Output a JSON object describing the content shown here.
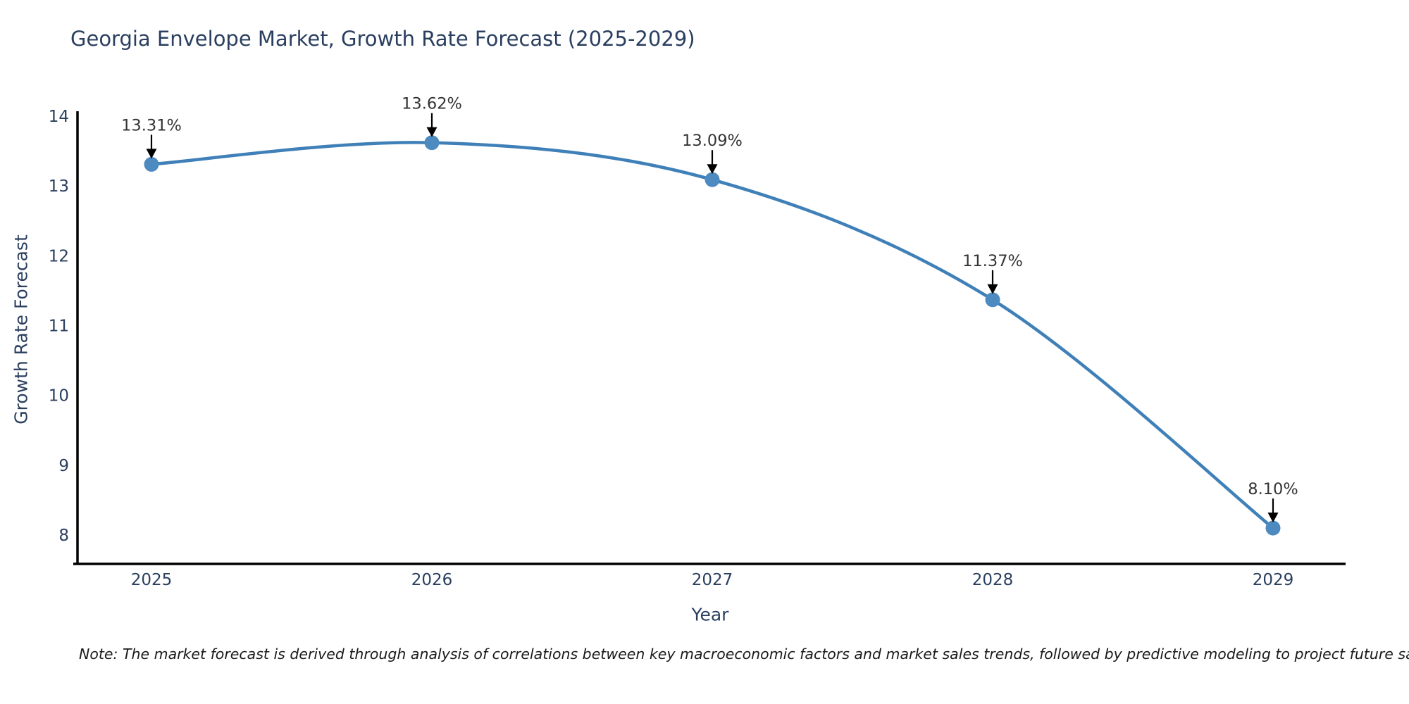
{
  "title": "Georgia Envelope Market, Growth Rate Forecast (2025-2029)",
  "note": "Note: The market forecast is derived through analysis of correlations between key macroeconomic factors and market sales trends, followed by predictive modeling to project future sales",
  "chart_data": {
    "type": "line",
    "title": "Georgia Envelope Market, Growth Rate Forecast (2025-2029)",
    "xlabel": "Year",
    "ylabel": "Growth Rate Forecast",
    "x": [
      2025,
      2026,
      2027,
      2028,
      2029
    ],
    "values": [
      13.31,
      13.62,
      13.09,
      11.37,
      8.1
    ],
    "point_labels": [
      "13.31%",
      "13.62%",
      "13.09%",
      "11.37%",
      "8.10%"
    ],
    "yticks": [
      8,
      9,
      10,
      11,
      12,
      13,
      14
    ],
    "ylim": [
      7.6,
      14.07
    ],
    "grid": false,
    "legend_position": "none",
    "line_style": "spline",
    "marker": "circle",
    "annotations_have_arrows": true,
    "colors": {
      "line": "#4080b8",
      "marker": "#4d8ac0",
      "axis_line": "#000000",
      "tick_text": "#2a3f5f",
      "title_text": "#2a3f5f",
      "annotation_text": "#333333",
      "annotation_arrow": "#000000",
      "background": "#ffffff"
    }
  }
}
